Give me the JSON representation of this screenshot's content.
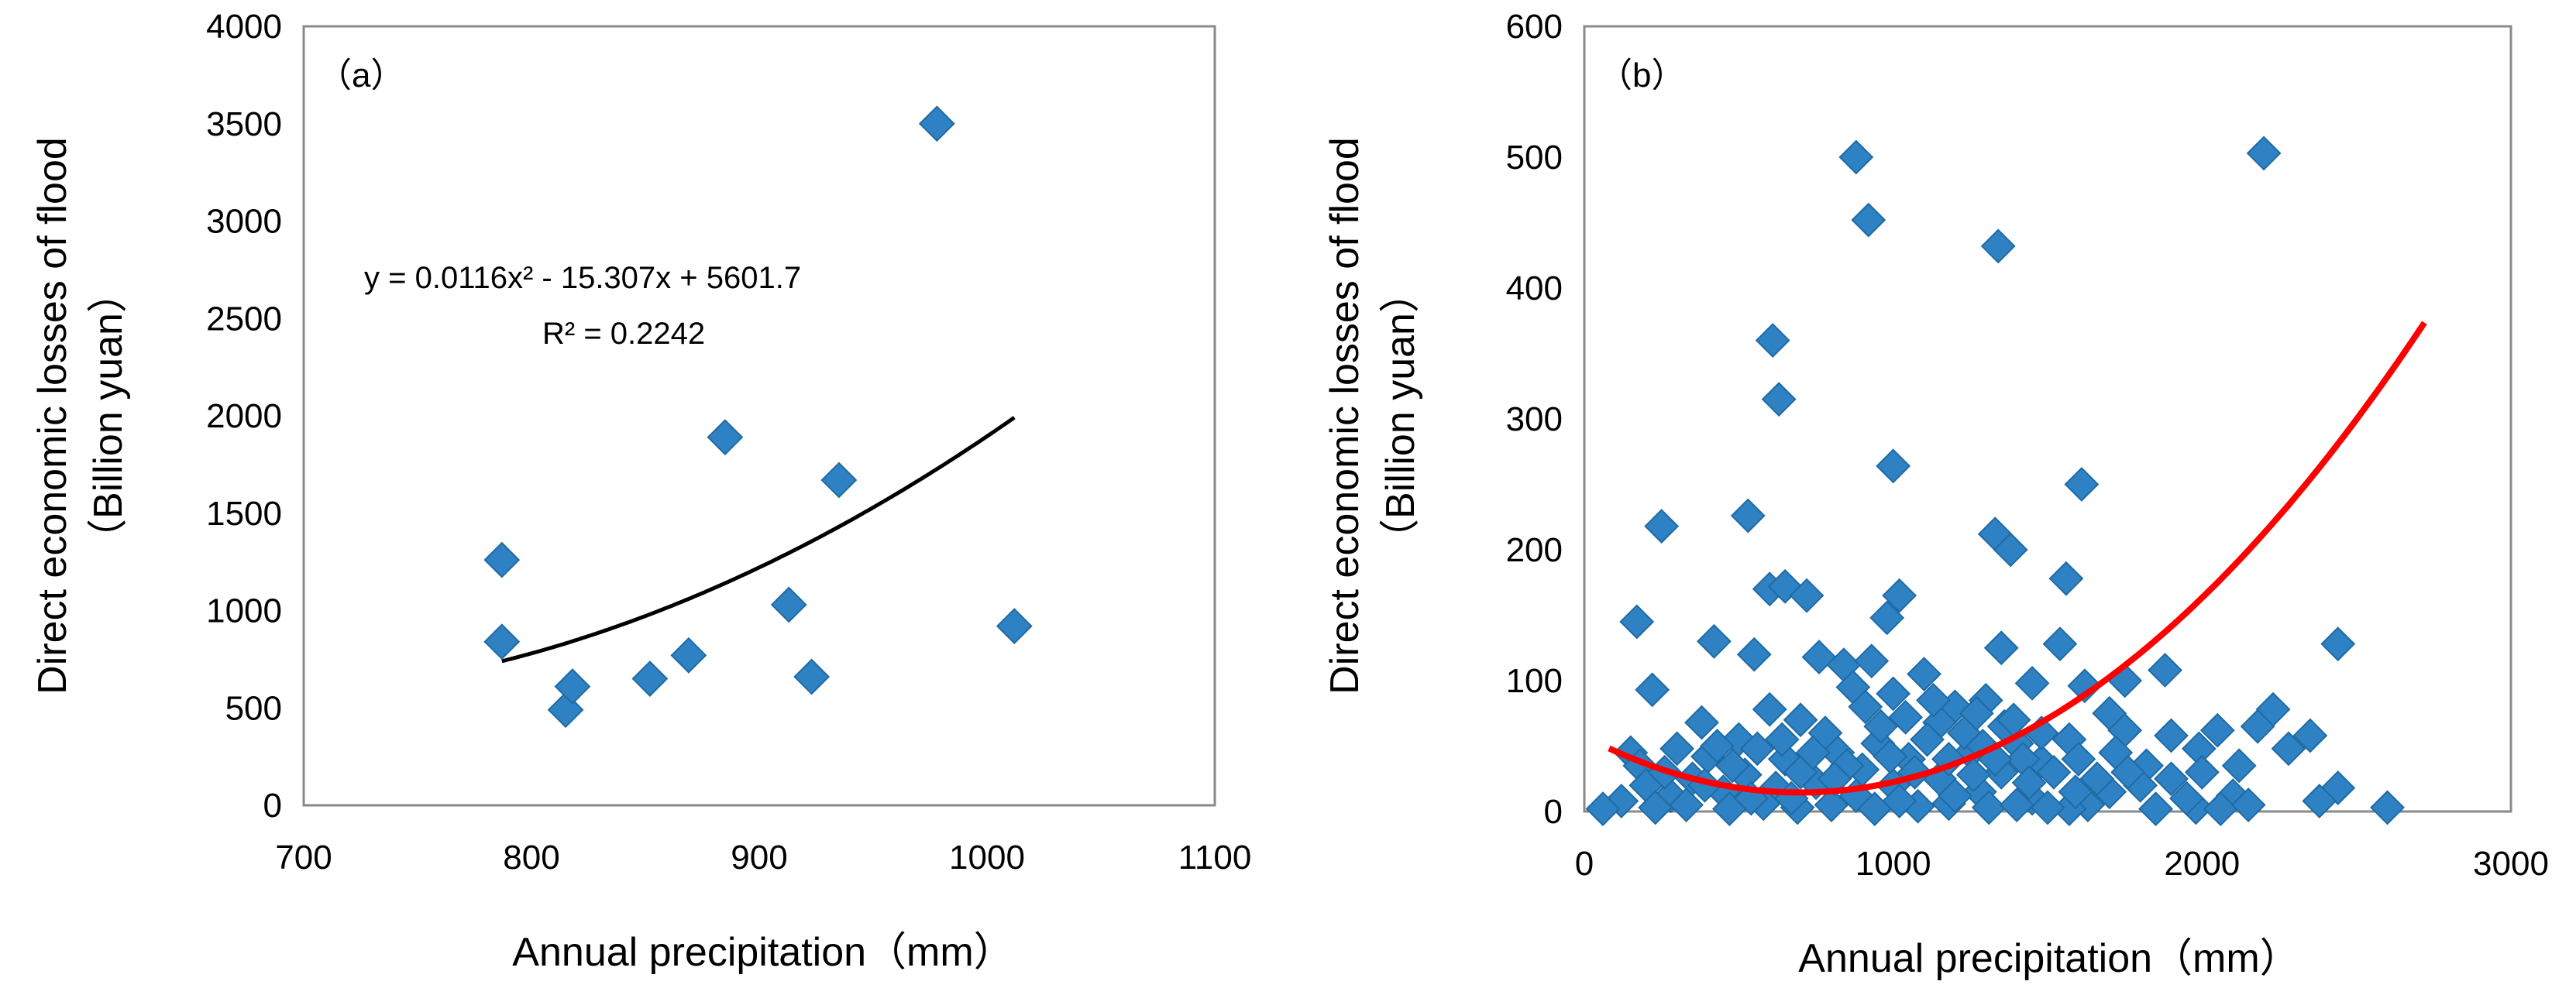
{
  "chart_data": [
    {
      "type": "scatter",
      "panel_label": "（a）",
      "xlabel": "Annual precipitation（mm）",
      "ylabel_line1": "Direct economic losses of flood",
      "ylabel_line2": "（Billion yuan）",
      "xlim": [
        700,
        1100
      ],
      "ylim": [
        0,
        4000
      ],
      "xticks": [
        "700",
        "800",
        "900",
        "1000",
        "1100"
      ],
      "yticks": [
        "0",
        "500",
        "1000",
        "1500",
        "2000",
        "2500",
        "3000",
        "3500",
        "4000"
      ],
      "marker_color": "#2e82c4",
      "points": [
        {
          "x": 787,
          "y": 1260
        },
        {
          "x": 787,
          "y": 840
        },
        {
          "x": 815,
          "y": 490
        },
        {
          "x": 818,
          "y": 610
        },
        {
          "x": 852,
          "y": 650
        },
        {
          "x": 869,
          "y": 770
        },
        {
          "x": 885,
          "y": 1890
        },
        {
          "x": 913,
          "y": 1030
        },
        {
          "x": 923,
          "y": 660
        },
        {
          "x": 935,
          "y": 1670
        },
        {
          "x": 978,
          "y": 3500
        },
        {
          "x": 1012,
          "y": 920
        }
      ],
      "trendline": {
        "a": 0.0116,
        "b": -15.307,
        "c": 5601.7,
        "x_from": 787,
        "x_to": 1012,
        "color": "#000000"
      },
      "equation": "y = 0.0116x² - 15.307x + 5601.7",
      "r_squared": "R² = 0.2242"
    },
    {
      "type": "scatter",
      "panel_label": "（b）",
      "xlabel": "Annual precipitation（mm）",
      "ylabel_line1": "Direct economic losses of flood",
      "ylabel_line2": "（Billion yuan）",
      "xlim": [
        0,
        3000
      ],
      "ylim": [
        0,
        600
      ],
      "xticks": [
        "0",
        "1000",
        "2000",
        "3000"
      ],
      "yticks": [
        "0",
        "100",
        "200",
        "300",
        "400",
        "500",
        "600"
      ],
      "marker_color": "#2e82c4",
      "points": [
        {
          "x": 880,
          "y": 500
        },
        {
          "x": 2200,
          "y": 503
        },
        {
          "x": 920,
          "y": 452
        },
        {
          "x": 1340,
          "y": 432
        },
        {
          "x": 610,
          "y": 360
        },
        {
          "x": 630,
          "y": 315
        },
        {
          "x": 1000,
          "y": 264
        },
        {
          "x": 1610,
          "y": 250
        },
        {
          "x": 250,
          "y": 218
        },
        {
          "x": 530,
          "y": 226
        },
        {
          "x": 1330,
          "y": 212
        },
        {
          "x": 1380,
          "y": 200
        },
        {
          "x": 1560,
          "y": 178
        },
        {
          "x": 600,
          "y": 170
        },
        {
          "x": 650,
          "y": 172
        },
        {
          "x": 720,
          "y": 165
        },
        {
          "x": 1020,
          "y": 165
        },
        {
          "x": 980,
          "y": 148
        },
        {
          "x": 170,
          "y": 145
        },
        {
          "x": 420,
          "y": 130
        },
        {
          "x": 2440,
          "y": 128
        },
        {
          "x": 1350,
          "y": 125
        },
        {
          "x": 1540,
          "y": 128
        },
        {
          "x": 550,
          "y": 120
        },
        {
          "x": 760,
          "y": 118
        },
        {
          "x": 840,
          "y": 112
        },
        {
          "x": 930,
          "y": 115
        },
        {
          "x": 1100,
          "y": 105
        },
        {
          "x": 1880,
          "y": 108
        },
        {
          "x": 1750,
          "y": 100
        },
        {
          "x": 1620,
          "y": 96
        },
        {
          "x": 220,
          "y": 93
        },
        {
          "x": 870,
          "y": 95
        },
        {
          "x": 1000,
          "y": 90
        },
        {
          "x": 1450,
          "y": 98
        },
        {
          "x": 1300,
          "y": 85
        },
        {
          "x": 1200,
          "y": 80
        },
        {
          "x": 2230,
          "y": 78
        },
        {
          "x": 600,
          "y": 78
        },
        {
          "x": 1700,
          "y": 75
        },
        {
          "x": 380,
          "y": 68
        },
        {
          "x": 700,
          "y": 70
        },
        {
          "x": 1150,
          "y": 68
        },
        {
          "x": 1750,
          "y": 62
        },
        {
          "x": 2050,
          "y": 62
        },
        {
          "x": 2180,
          "y": 65
        },
        {
          "x": 2350,
          "y": 58
        },
        {
          "x": 1900,
          "y": 58
        },
        {
          "x": 1570,
          "y": 55
        },
        {
          "x": 500,
          "y": 55
        },
        {
          "x": 950,
          "y": 52
        },
        {
          "x": 1400,
          "y": 52
        },
        {
          "x": 2280,
          "y": 48
        },
        {
          "x": 1990,
          "y": 48
        },
        {
          "x": 150,
          "y": 45
        },
        {
          "x": 300,
          "y": 48
        },
        {
          "x": 820,
          "y": 45
        },
        {
          "x": 1250,
          "y": 45
        },
        {
          "x": 1720,
          "y": 45
        },
        {
          "x": 400,
          "y": 42
        },
        {
          "x": 650,
          "y": 40
        },
        {
          "x": 1050,
          "y": 40
        },
        {
          "x": 1480,
          "y": 38
        },
        {
          "x": 1820,
          "y": 35
        },
        {
          "x": 180,
          "y": 35
        },
        {
          "x": 1350,
          "y": 30
        },
        {
          "x": 900,
          "y": 32
        },
        {
          "x": 2440,
          "y": 18
        },
        {
          "x": 1900,
          "y": 25
        },
        {
          "x": 2100,
          "y": 12
        },
        {
          "x": 2380,
          "y": 8
        },
        {
          "x": 1850,
          "y": 2
        },
        {
          "x": 1980,
          "y": 3
        },
        {
          "x": 2060,
          "y": 2
        },
        {
          "x": 2600,
          "y": 3
        },
        {
          "x": 1630,
          "y": 5
        },
        {
          "x": 1570,
          "y": 2
        },
        {
          "x": 1450,
          "y": 10
        },
        {
          "x": 1280,
          "y": 15
        },
        {
          "x": 1150,
          "y": 25
        },
        {
          "x": 1000,
          "y": 20
        },
        {
          "x": 880,
          "y": 12
        },
        {
          "x": 750,
          "y": 22
        },
        {
          "x": 620,
          "y": 18
        },
        {
          "x": 520,
          "y": 28
        },
        {
          "x": 450,
          "y": 15
        },
        {
          "x": 350,
          "y": 25
        },
        {
          "x": 280,
          "y": 12
        },
        {
          "x": 200,
          "y": 20
        },
        {
          "x": 120,
          "y": 8
        },
        {
          "x": 60,
          "y": 2
        },
        {
          "x": 230,
          "y": 3
        },
        {
          "x": 330,
          "y": 5
        },
        {
          "x": 470,
          "y": 2
        },
        {
          "x": 580,
          "y": 6
        },
        {
          "x": 690,
          "y": 3
        },
        {
          "x": 800,
          "y": 5
        },
        {
          "x": 940,
          "y": 2
        },
        {
          "x": 1080,
          "y": 4
        },
        {
          "x": 1180,
          "y": 6
        },
        {
          "x": 1310,
          "y": 3
        },
        {
          "x": 1400,
          "y": 5
        },
        {
          "x": 1500,
          "y": 3
        },
        {
          "x": 1700,
          "y": 15
        },
        {
          "x": 1800,
          "y": 20
        },
        {
          "x": 1950,
          "y": 10
        },
        {
          "x": 2150,
          "y": 5
        },
        {
          "x": 560,
          "y": 48
        },
        {
          "x": 640,
          "y": 55
        },
        {
          "x": 780,
          "y": 60
        },
        {
          "x": 850,
          "y": 35
        },
        {
          "x": 960,
          "y": 65
        },
        {
          "x": 1040,
          "y": 72
        },
        {
          "x": 1110,
          "y": 55
        },
        {
          "x": 1180,
          "y": 40
        },
        {
          "x": 1230,
          "y": 60
        },
        {
          "x": 1290,
          "y": 50
        },
        {
          "x": 1360,
          "y": 65
        },
        {
          "x": 1420,
          "y": 40
        },
        {
          "x": 1520,
          "y": 30
        },
        {
          "x": 1600,
          "y": 40
        },
        {
          "x": 1660,
          "y": 25
        },
        {
          "x": 700,
          "y": 30
        },
        {
          "x": 480,
          "y": 35
        },
        {
          "x": 390,
          "y": 20
        },
        {
          "x": 260,
          "y": 30
        },
        {
          "x": 740,
          "y": 45
        },
        {
          "x": 1070,
          "y": 30
        },
        {
          "x": 1200,
          "y": 12
        },
        {
          "x": 1330,
          "y": 40
        },
        {
          "x": 910,
          "y": 80
        },
        {
          "x": 1130,
          "y": 85
        },
        {
          "x": 1270,
          "y": 75
        },
        {
          "x": 1390,
          "y": 70
        },
        {
          "x": 1480,
          "y": 60
        },
        {
          "x": 990,
          "y": 42
        },
        {
          "x": 810,
          "y": 25
        },
        {
          "x": 670,
          "y": 10
        },
        {
          "x": 540,
          "y": 10
        },
        {
          "x": 430,
          "y": 50
        },
        {
          "x": 1020,
          "y": 8
        },
        {
          "x": 1260,
          "y": 28
        },
        {
          "x": 1440,
          "y": 22
        },
        {
          "x": 1590,
          "y": 15
        },
        {
          "x": 1760,
          "y": 30
        },
        {
          "x": 2000,
          "y": 30
        },
        {
          "x": 2120,
          "y": 35
        }
      ],
      "trendline": {
        "a": 8.79e-05,
        "b": -0.1229,
        "c": 57.5,
        "x_from": 80,
        "x_to": 2720,
        "color": "#ff0000"
      }
    }
  ]
}
